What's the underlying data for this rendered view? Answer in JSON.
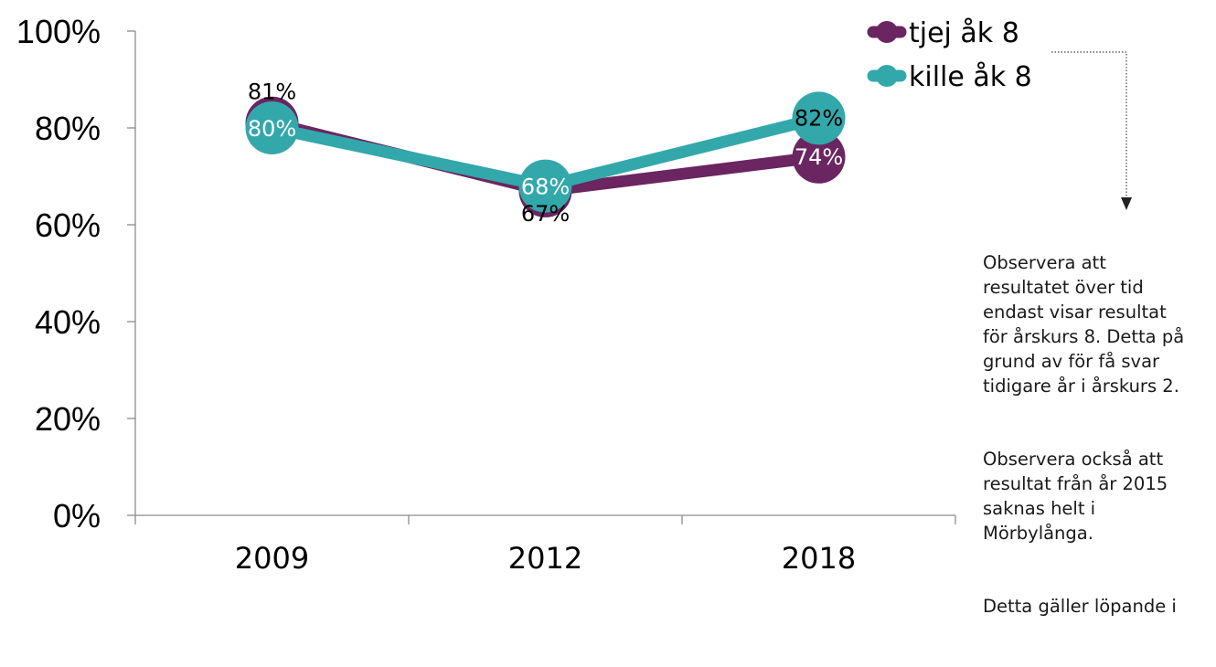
{
  "colors": {
    "tjej": "#6b2560",
    "kille": "#33a8ab",
    "axis": "#8c8c8c",
    "text": "#000000"
  },
  "chart_data": {
    "type": "line",
    "categories": [
      "2009",
      "2012",
      "2018"
    ],
    "y_ticks": [
      "0%",
      "20%",
      "40%",
      "60%",
      "80%",
      "100%"
    ],
    "ylim": [
      0,
      100
    ],
    "grid": false,
    "legend_position": "top-right",
    "series": [
      {
        "name": "tjej åk 8",
        "values": [
          81,
          67,
          74
        ],
        "labels": [
          "81%",
          "67%",
          "74%"
        ]
      },
      {
        "name": "kille åk 8",
        "values": [
          80,
          68,
          82
        ],
        "labels": [
          "80%",
          "68%",
          "82%"
        ]
      }
    ]
  },
  "note": {
    "paragraph_1": "Observera att\nresultatet över tid\nendast visar resultat\nför årskurs 8. Detta på\ngrund av för få svar\ntidigare år i årskurs 2.",
    "paragraph_2": "Observera också att\nresultat från år 2015\nsaknas helt i\nMörbylånga.",
    "paragraph_3": "Detta gäller löpande i"
  }
}
